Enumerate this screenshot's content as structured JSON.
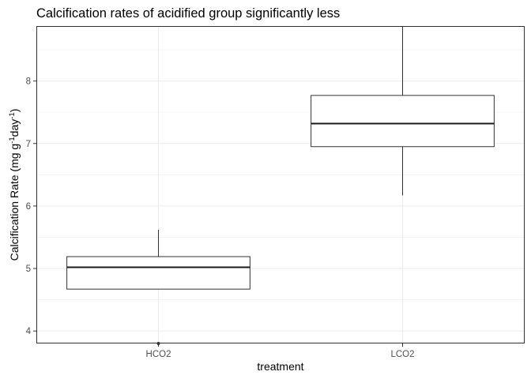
{
  "chart_data": {
    "type": "boxplot",
    "title": "Calcification rates of acidified group significantly less",
    "xlabel": "treatment",
    "ylabel": {
      "base": "Calcification Rate (mg g",
      "sup1": "-1",
      "mid": "day",
      "sup2": "-1",
      "end": ")"
    },
    "ylim": [
      3.8,
      8.88
    ],
    "yticks": [
      4,
      5,
      6,
      7,
      8
    ],
    "grid": true,
    "categories": [
      "HCO2",
      "LCO2"
    ],
    "boxes": [
      {
        "category": "HCO2",
        "whisker_low": 4.67,
        "q1": 4.67,
        "median": 5.02,
        "q3": 5.19,
        "whisker_high": 5.62,
        "outliers": [
          3.8
        ]
      },
      {
        "category": "LCO2",
        "whisker_low": 6.17,
        "q1": 6.95,
        "median": 7.32,
        "q3": 7.77,
        "whisker_high": 8.88,
        "outliers": []
      }
    ]
  }
}
